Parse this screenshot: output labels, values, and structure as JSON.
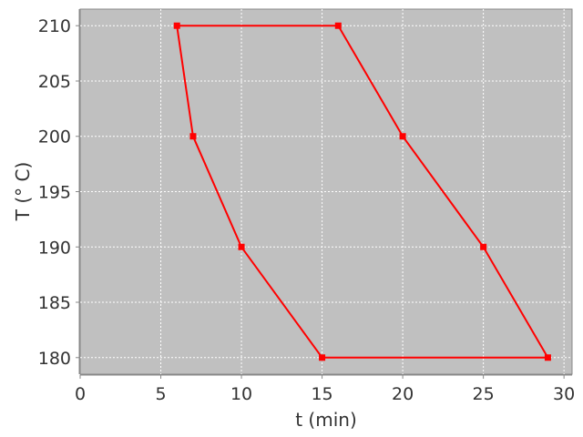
{
  "chart_data": {
    "type": "line",
    "title": "",
    "xlabel": "t (min)",
    "ylabel": "T (° C)",
    "xlim": [
      0,
      30.5
    ],
    "ylim": [
      178.5,
      211.5
    ],
    "xticks": [
      0,
      5,
      10,
      15,
      20,
      25,
      30
    ],
    "yticks": [
      180,
      185,
      190,
      195,
      200,
      205,
      210
    ],
    "grid": true,
    "legend": "none",
    "colors": {
      "plot_background": "#c0c0c0",
      "grid": "#ffffff",
      "series": "#ff0000",
      "axis": "#888888"
    },
    "series": [
      {
        "closed": true,
        "x": [
          6,
          7,
          10,
          15,
          29,
          25,
          20,
          16
        ],
        "y": [
          210,
          200,
          190,
          180,
          180,
          190,
          200,
          210
        ]
      }
    ]
  }
}
